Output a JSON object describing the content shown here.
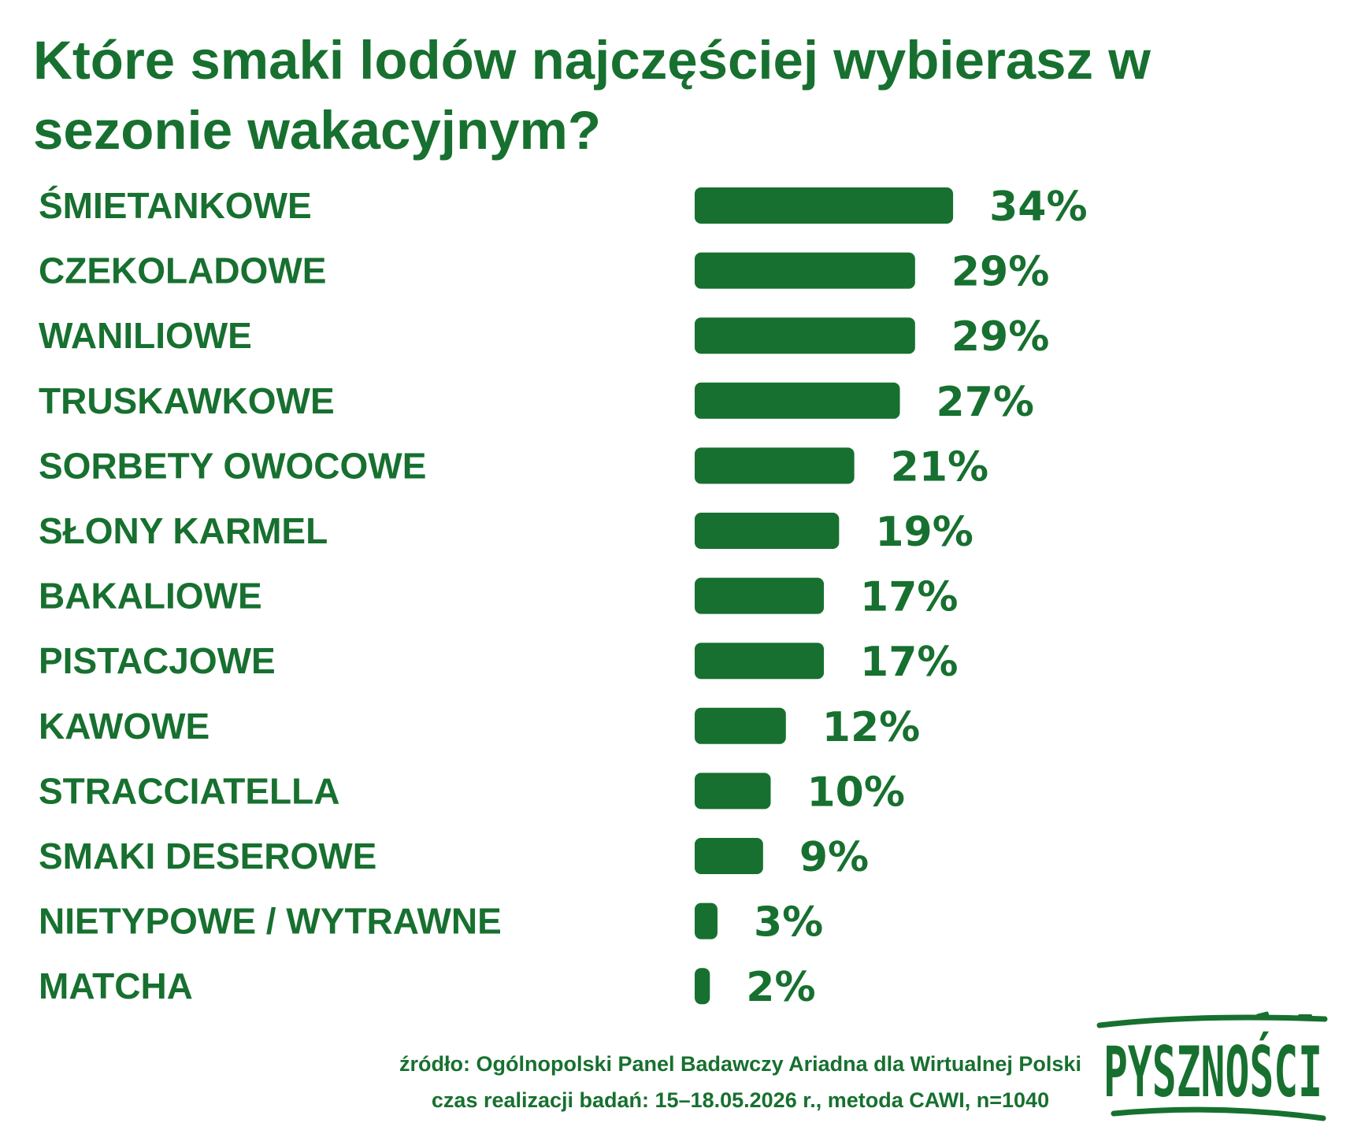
{
  "chart_data": {
    "type": "bar",
    "orientation": "horizontal",
    "title": "Które smaki lodów najczęściej wybierasz w sezonie wakacyjnym?",
    "categories": [
      "ŚMIETANKOWE",
      "CZEKOLADOWE",
      "WANILIOWE",
      "TRUSKAWKOWE",
      "SORBETY OWOCOWE",
      "SŁONY KARMEL",
      "BAKALIOWE",
      "PISTACJOWE",
      "KAWOWE",
      "STRACCIATELLA",
      "SMAKI DESEROWE",
      "NIETYPOWE / WYTRAWNE",
      "MATCHA"
    ],
    "values": [
      34,
      29,
      29,
      27,
      21,
      19,
      17,
      17,
      12,
      10,
      9,
      3,
      2
    ],
    "value_labels": [
      "34%",
      "29%",
      "29%",
      "27%",
      "21%",
      "19%",
      "17%",
      "17%",
      "12%",
      "10%",
      "9%",
      "3%",
      "2%"
    ],
    "unit": "%",
    "grid": false,
    "legend": "none"
  },
  "footer": {
    "source": "źródło: Ogólnopolski Panel Badawczy Ariadna dla Wirtualnej Polski",
    "details": "czas realizacji badań: 15–18.05.2026 r., metoda CAWI, n=1040"
  },
  "logo": {
    "text": "PYSZNOŚCI"
  },
  "colors": {
    "brand_green": "#17702f",
    "background": "#ffffff"
  }
}
